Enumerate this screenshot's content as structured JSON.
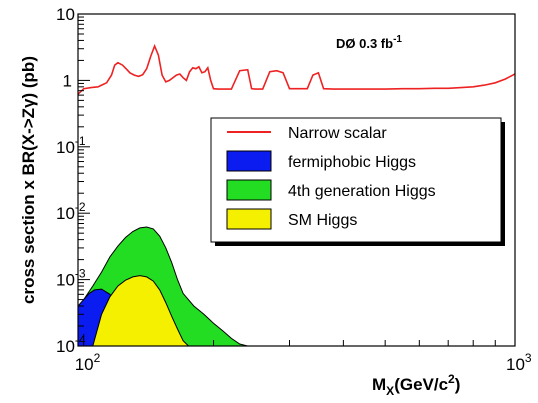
{
  "chart_data": {
    "type": "line",
    "annotation": "DØ 0.3 fb",
    "annotation_sup": "-1",
    "xlabel_main": "M",
    "xlabel_sub": "X",
    "xlabel_rest": "(GeV/c",
    "xlabel_sup": "2",
    "xlabel_close": ")",
    "ylabel": "cross section x BR(X->Zγ) (pb)",
    "x_scale": "log",
    "y_scale": "log",
    "xlim": [
      97,
      1000
    ],
    "ylim": [
      0.0001,
      10
    ],
    "x_ticks": [
      {
        "base": "10",
        "exp": "2",
        "value": 100
      },
      {
        "base": "10",
        "exp": "3",
        "value": 1000
      }
    ],
    "y_ticks": [
      {
        "base": "10",
        "exp": "",
        "value": 10
      },
      {
        "base": "1",
        "exp": "",
        "value": 1
      },
      {
        "base": "10",
        "exp": "-1",
        "value": 0.1
      },
      {
        "base": "10",
        "exp": "-2",
        "value": 0.01
      },
      {
        "base": "10",
        "exp": "-3",
        "value": 0.001
      },
      {
        "base": "10",
        "exp": "-4",
        "value": 0.0001
      }
    ],
    "grid": false,
    "legend_placement": "right-center",
    "legend": [
      {
        "label": "Narrow scalar",
        "kind": "line",
        "color": "#ee2222"
      },
      {
        "label": "fermiphobic Higgs",
        "kind": "fill",
        "color": "#0a1cf0"
      },
      {
        "label": "4th generation Higgs",
        "kind": "fill",
        "color": "#22dd22"
      },
      {
        "label": "SM Higgs",
        "kind": "fill",
        "color": "#f5f000"
      }
    ],
    "series": [
      {
        "name": "Narrow scalar",
        "kind": "line",
        "color": "#ee2222",
        "x": [
          97,
          100,
          104,
          108,
          110,
          113,
          116,
          118,
          120,
          123,
          126,
          128,
          131,
          134,
          137,
          140,
          143,
          146,
          149,
          152,
          155,
          158,
          161,
          164,
          167,
          170,
          173,
          176,
          179,
          182,
          185,
          188,
          191,
          194,
          197,
          200,
          205,
          210,
          215,
          220,
          230,
          240,
          245,
          250,
          260,
          270,
          280,
          290,
          300,
          310,
          320,
          330,
          340,
          350,
          360,
          380,
          400,
          450,
          500,
          550,
          600,
          650,
          700,
          750,
          800,
          850,
          900,
          950,
          1000
        ],
        "y": [
          0.62,
          0.75,
          0.78,
          0.8,
          0.85,
          0.92,
          1.2,
          1.7,
          1.85,
          1.7,
          1.45,
          1.3,
          1.2,
          1.15,
          1.22,
          1.5,
          2.3,
          3.3,
          2.4,
          1.2,
          0.95,
          1.0,
          1.1,
          1.2,
          1.25,
          1.1,
          1.0,
          1.35,
          1.55,
          1.5,
          1.6,
          1.3,
          1.35,
          1.55,
          1.0,
          0.75,
          0.74,
          0.74,
          0.74,
          0.74,
          1.4,
          1.45,
          0.75,
          0.74,
          0.74,
          1.35,
          1.4,
          1.3,
          0.75,
          0.75,
          0.75,
          0.75,
          1.2,
          1.3,
          0.75,
          0.74,
          0.74,
          0.74,
          0.74,
          0.75,
          0.75,
          0.76,
          0.76,
          0.78,
          0.8,
          0.85,
          0.92,
          1.05,
          1.25
        ]
      },
      {
        "name": "4th generation Higgs",
        "kind": "fill",
        "color": "#22dd22",
        "x": [
          97,
          100,
          105,
          110,
          115,
          120,
          125,
          130,
          135,
          140,
          145,
          150,
          155,
          160,
          165,
          170,
          180,
          190,
          200,
          210,
          220,
          230,
          240
        ],
        "y": [
          0.00035,
          0.0005,
          0.0008,
          0.0013,
          0.0022,
          0.0032,
          0.0043,
          0.0053,
          0.006,
          0.0062,
          0.0058,
          0.0045,
          0.003,
          0.0018,
          0.001,
          0.00062,
          0.0004,
          0.0003,
          0.00022,
          0.00017,
          0.00013,
          0.000107,
          0.0001
        ]
      },
      {
        "name": "fermiphobic Higgs",
        "kind": "fill",
        "color": "#0a1cf0",
        "x": [
          97,
          100,
          103,
          106,
          110,
          115,
          120,
          125,
          130
        ],
        "y": [
          0.0004,
          0.0005,
          0.00062,
          0.0007,
          0.00072,
          0.0006,
          0.0004,
          0.00022,
          0.00012
        ]
      },
      {
        "name": "SM Higgs",
        "kind": "fill",
        "color": "#f5f000",
        "x": [
          105,
          110,
          115,
          120,
          125,
          130,
          135,
          140,
          145,
          150,
          155,
          160,
          165,
          170,
          175
        ],
        "y": [
          0.0001,
          0.0003,
          0.00055,
          0.0008,
          0.00098,
          0.0011,
          0.00115,
          0.0011,
          0.00095,
          0.0007,
          0.00045,
          0.00028,
          0.00018,
          0.00012,
          0.0001
        ]
      }
    ]
  }
}
